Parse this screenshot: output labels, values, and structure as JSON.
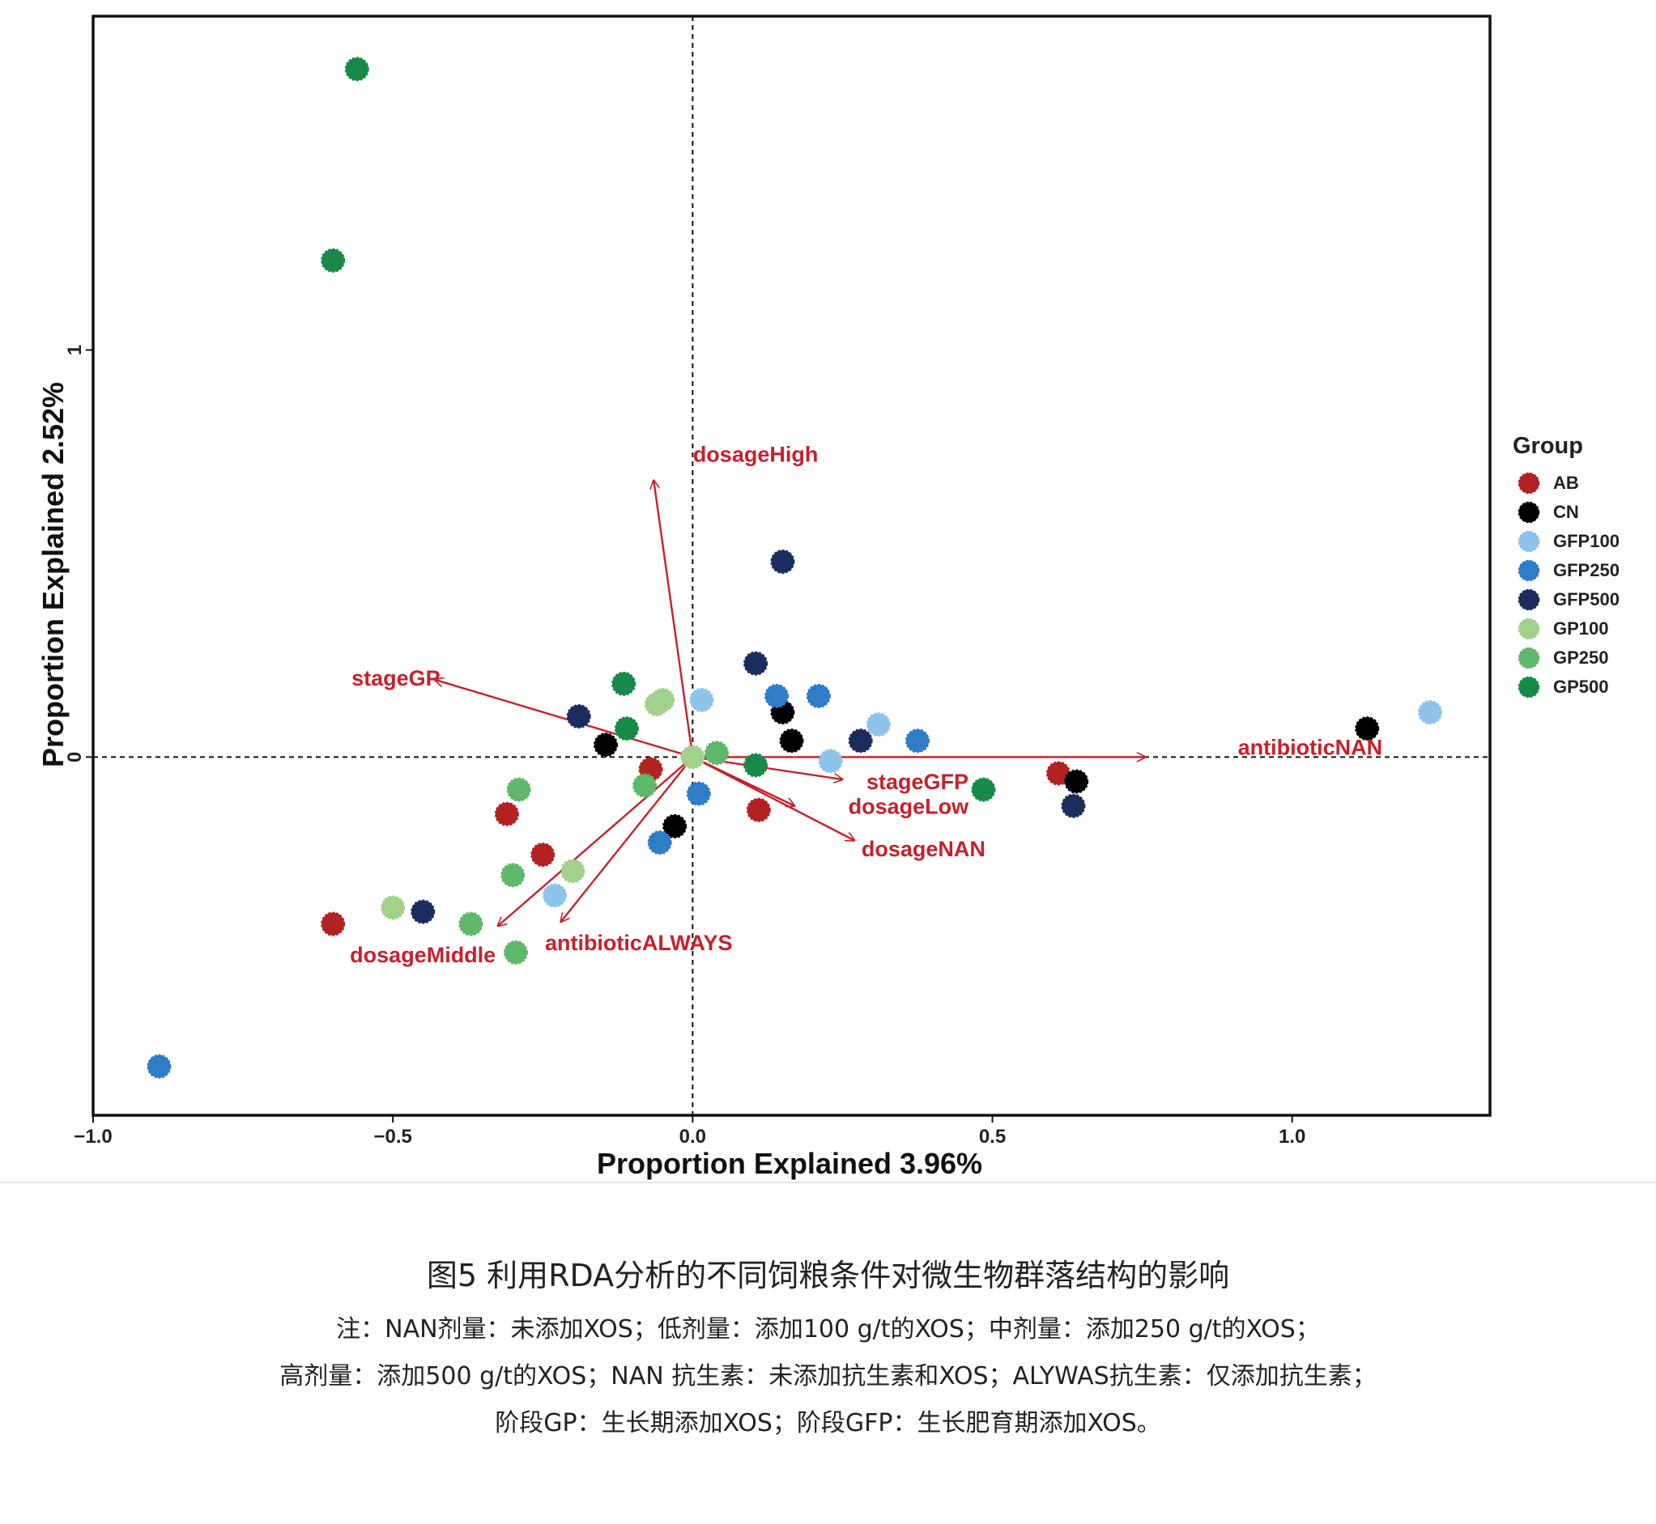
{
  "chart_data": {
    "type": "scatter",
    "xlabel": "Proportion Explained 3.96%",
    "ylabel": "Proportion Explained 2.52%",
    "xlim": [
      -1.0,
      1.33
    ],
    "ylim": [
      -0.88,
      1.82
    ],
    "x_ticks": [
      {
        "value": -1.0,
        "label": "−1.0"
      },
      {
        "value": -0.5,
        "label": "−0.5"
      },
      {
        "value": 0.0,
        "label": "0.0"
      },
      {
        "value": 0.5,
        "label": "0.5"
      },
      {
        "value": 1.0,
        "label": "1.0"
      }
    ],
    "y_ticks": [
      {
        "value": 0,
        "label": "0"
      },
      {
        "value": 1,
        "label": "1"
      }
    ],
    "reference_lines": {
      "x": 0,
      "y": 0,
      "style": "dashed"
    },
    "legend": {
      "title": "Group",
      "position": "right",
      "entries": [
        {
          "name": "AB",
          "color": "#b22222"
        },
        {
          "name": "CN",
          "color": "#000000"
        },
        {
          "name": "GFP100",
          "color": "#8ec3ea"
        },
        {
          "name": "GFP250",
          "color": "#2f7cc7"
        },
        {
          "name": "GFP500",
          "color": "#1c2c5c"
        },
        {
          "name": "GP100",
          "color": "#a2d18c"
        },
        {
          "name": "GP250",
          "color": "#5fb86b"
        },
        {
          "name": "GP500",
          "color": "#178a4a"
        }
      ]
    },
    "series": [
      {
        "name": "AB",
        "color": "#b22222",
        "points": [
          [
            -0.6,
            -0.41
          ],
          [
            -0.31,
            -0.14
          ],
          [
            -0.25,
            -0.24
          ],
          [
            -0.07,
            -0.03
          ],
          [
            0.11,
            -0.13
          ],
          [
            0.61,
            -0.04
          ]
        ]
      },
      {
        "name": "CN",
        "color": "#000000",
        "points": [
          [
            -0.145,
            0.03
          ],
          [
            -0.03,
            -0.17
          ],
          [
            0.15,
            0.11
          ],
          [
            0.165,
            0.04
          ],
          [
            1.125,
            0.07
          ],
          [
            0.64,
            -0.06
          ]
        ]
      },
      {
        "name": "GFP100",
        "color": "#8ec3ea",
        "points": [
          [
            0.015,
            0.14
          ],
          [
            0.31,
            0.08
          ],
          [
            0.23,
            -0.01
          ],
          [
            -0.23,
            -0.34
          ],
          [
            1.23,
            0.11
          ]
        ]
      },
      {
        "name": "GFP250",
        "color": "#2f7cc7",
        "points": [
          [
            0.14,
            0.15
          ],
          [
            0.21,
            0.15
          ],
          [
            0.375,
            0.04
          ],
          [
            0.01,
            -0.09
          ],
          [
            -0.055,
            -0.21
          ],
          [
            -0.89,
            -0.76
          ]
        ]
      },
      {
        "name": "GFP500",
        "color": "#1c2c5c",
        "points": [
          [
            0.15,
            0.48
          ],
          [
            0.105,
            0.23
          ],
          [
            0.28,
            0.04
          ],
          [
            -0.19,
            0.1
          ],
          [
            -0.45,
            -0.38
          ],
          [
            0.635,
            -0.12
          ]
        ]
      },
      {
        "name": "GP100",
        "color": "#a2d18c",
        "points": [
          [
            -0.06,
            0.13
          ],
          [
            -0.05,
            0.14
          ],
          [
            -0.5,
            -0.37
          ],
          [
            -0.2,
            -0.28
          ],
          [
            0.0,
            0.0
          ]
        ]
      },
      {
        "name": "GP250",
        "color": "#5fb86b",
        "points": [
          [
            -0.29,
            -0.08
          ],
          [
            -0.08,
            -0.07
          ],
          [
            -0.3,
            -0.29
          ],
          [
            -0.37,
            -0.41
          ],
          [
            -0.295,
            -0.48
          ],
          [
            0.04,
            0.01
          ]
        ]
      },
      {
        "name": "GP500",
        "color": "#178a4a",
        "points": [
          [
            -0.56,
            1.69
          ],
          [
            -0.6,
            1.22
          ],
          [
            -0.115,
            0.18
          ],
          [
            -0.11,
            0.07
          ],
          [
            0.105,
            -0.02
          ],
          [
            0.485,
            -0.08
          ]
        ]
      }
    ],
    "vectors": [
      {
        "name": "dosageHigh",
        "x": -0.065,
        "y": 0.68,
        "label_at": [
          0.105,
          0.74
        ]
      },
      {
        "name": "stageGP",
        "x": -0.43,
        "y": 0.19,
        "label_at": [
          -0.495,
          0.19
        ]
      },
      {
        "name": "antibioticNAN",
        "x": 0.755,
        "y": 0.0,
        "label_at": [
          1.03,
          0.02
        ]
      },
      {
        "name": "stageGFP",
        "x": 0.25,
        "y": -0.055,
        "label_at": [
          0.375,
          -0.065
        ]
      },
      {
        "name": "dosageLow",
        "x": 0.17,
        "y": -0.12,
        "label_at": [
          0.36,
          -0.125
        ]
      },
      {
        "name": "dosageNAN",
        "x": 0.27,
        "y": -0.205,
        "label_at": [
          0.385,
          -0.23
        ]
      },
      {
        "name": "dosageMiddle",
        "x": -0.325,
        "y": -0.415,
        "label_at": [
          -0.45,
          -0.49
        ]
      },
      {
        "name": "antibioticALWAYS",
        "x": -0.22,
        "y": -0.405,
        "label_at": [
          -0.09,
          -0.46
        ]
      }
    ],
    "vector_color": "#c8202a"
  },
  "caption": {
    "title": "图5 利用RDA分析的不同饲粮条件对微生物群落结构的影响",
    "note_line1": "注：NAN剂量：未添加XOS；低剂量：添加100 g/t的XOS；中剂量：添加250 g/t的XOS；",
    "note_line2": "高剂量：添加500 g/t的XOS；NAN 抗生素：未添加抗生素和XOS；ALYWAS抗生素：仅添加抗生素；",
    "note_line3": "阶段GP：生长期添加XOS；阶段GFP：生长肥育期添加XOS。"
  }
}
